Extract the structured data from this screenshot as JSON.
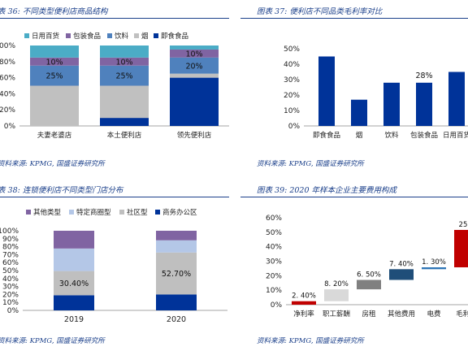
{
  "panels": [
    {
      "title": "表 36: 不同类型便利店商品结构",
      "source": "资料来源: KPMG, 国盛证券研究所",
      "chart_data": {
        "type": "bar",
        "stacked": true,
        "categories": [
          "夫妻老婆店",
          "本土便利店",
          "领先便利店"
        ],
        "series": [
          {
            "name": "日用百货",
            "color": "#4bacc6",
            "values": [
              15,
              15,
              5
            ]
          },
          {
            "name": "包装食品",
            "color": "#8064a2",
            "values": [
              10,
              10,
              10
            ]
          },
          {
            "name": "饮料",
            "color": "#4f81bd",
            "values": [
              25,
              25,
              20
            ]
          },
          {
            "name": "烟",
            "color": "#c0c0c0",
            "values": [
              50,
              40,
              5
            ]
          },
          {
            "name": "即食食品",
            "color": "#003399",
            "values": [
              0,
              10,
              60
            ]
          }
        ],
        "data_labels": [
          {
            "category": 0,
            "series": 1,
            "text": "10%"
          },
          {
            "category": 0,
            "series": 2,
            "text": "25%"
          },
          {
            "category": 1,
            "series": 1,
            "text": "10%"
          },
          {
            "category": 1,
            "series": 2,
            "text": "25%"
          },
          {
            "category": 2,
            "series": 1,
            "text": "10%"
          },
          {
            "category": 2,
            "series": 2,
            "text": "20%"
          }
        ],
        "yticks": [
          "0%",
          "20%",
          "40%",
          "60%",
          "80%",
          "100%"
        ],
        "ylim": [
          0,
          100
        ],
        "legend": "top"
      }
    },
    {
      "title": "图表 37: 便利店不同品类毛利率对比",
      "source": "资料来源: KPMG, 国盛证券研究所",
      "chart_data": {
        "type": "bar",
        "categories": [
          "即食食品",
          "烟",
          "饮料",
          "包装食品",
          "日用百货"
        ],
        "values": [
          45,
          17,
          28,
          28,
          35
        ],
        "color": "#003399",
        "data_labels": [
          {
            "index": 3,
            "text": "28%"
          }
        ],
        "yticks": [
          "0%",
          "10%",
          "20%",
          "30%",
          "40%",
          "50%"
        ],
        "ylim": [
          0,
          50
        ]
      }
    },
    {
      "title": "表 38: 连锁便利店不同类型门店分布",
      "source": "资料来源: KPMG, 国盛证券研究所",
      "chart_data": {
        "type": "bar",
        "stacked": true,
        "categories": [
          "2019",
          "2020"
        ],
        "series": [
          {
            "name": "其他类型",
            "color": "#8064a2",
            "values": [
              22.3,
              12
            ]
          },
          {
            "name": "特定商圈型",
            "color": "#b4c7e7",
            "values": [
              28.3,
              15.3
            ]
          },
          {
            "name": "社区型",
            "color": "#bfbfbf",
            "values": [
              30.4,
              52.7
            ]
          },
          {
            "name": "商务办公区",
            "color": "#003399",
            "values": [
              19,
              20
            ]
          }
        ],
        "data_labels": [
          {
            "category": 0,
            "series": 2,
            "text": "30.40%"
          },
          {
            "category": 1,
            "series": 2,
            "text": "52.70%"
          }
        ],
        "yticks": [
          "0%",
          "10%",
          "20%",
          "30%",
          "40%",
          "50%",
          "60%",
          "70%",
          "80%",
          "90%",
          "100%"
        ],
        "ylim": [
          0,
          100
        ],
        "legend": "top"
      }
    },
    {
      "title": "图表 39: 2020 年样本企业主要费用构成",
      "source": "资料来源: KPMG, 国盛证券研究所",
      "chart_data": {
        "type": "bar",
        "waterfall": true,
        "categories": [
          "净利率",
          "职工薪酬",
          "房租",
          "其他费用",
          "电费",
          "毛利率"
        ],
        "bars": [
          {
            "base": 0,
            "value": 2.4,
            "color": "#c00000",
            "label": "2. 40%"
          },
          {
            "base": 2.4,
            "value": 8.2,
            "color": "#d9d9d9",
            "label": "8. 20%"
          },
          {
            "base": 10.6,
            "value": 6.5,
            "color": "#808080",
            "label": "6. 50%"
          },
          {
            "base": 17.1,
            "value": 7.4,
            "color": "#1f4e79",
            "label": "7. 40%"
          },
          {
            "base": 24.5,
            "value": 1.3,
            "color": "#2e75b6",
            "label": "1. 30%"
          },
          {
            "base": 25.8,
            "value": 25.8,
            "color": "#c00000",
            "label": "25.8"
          }
        ],
        "yticks": [
          "0%",
          "10%",
          "20%",
          "30%",
          "40%",
          "50%",
          "60%"
        ],
        "ylim": [
          0,
          60
        ]
      }
    }
  ]
}
